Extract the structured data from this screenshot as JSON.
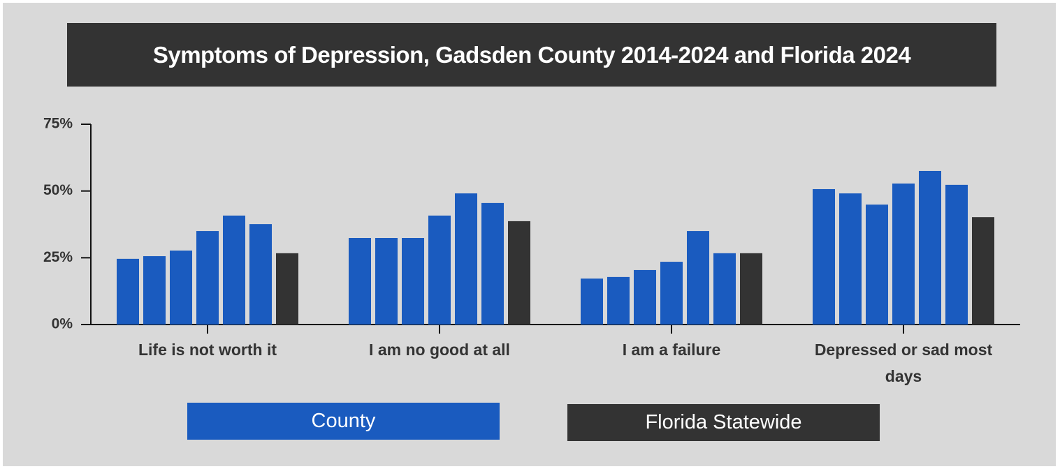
{
  "chart_data": {
    "type": "bar",
    "title": "Symptoms of Depression, Gadsden County 2014-2024 and Florida 2024",
    "categories": [
      "Life is not worth it",
      "I am no good at all",
      "I am a failure",
      "Depressed or sad most days"
    ],
    "series": [
      {
        "name": "County",
        "color": "#1a5bbf",
        "values": [
          [
            24.6,
            25.6,
            27.7,
            35,
            40.8,
            37.6
          ],
          [
            32.4,
            32.4,
            32.4,
            40.8,
            49.1,
            45.5
          ],
          [
            17.2,
            17.8,
            20.4,
            23.5,
            35,
            26.7
          ],
          [
            50.7,
            49.1,
            44.9,
            52.8,
            57.5,
            52.3
          ]
        ]
      },
      {
        "name": "Florida Statewide",
        "color": "#333333",
        "values": [
          26.7,
          38.7,
          26.7,
          40.2
        ]
      }
    ],
    "ylim": [
      0,
      75
    ],
    "yticks": [
      {
        "value": 0,
        "label": "0%"
      },
      {
        "value": 25,
        "label": "25%"
      },
      {
        "value": 50,
        "label": "50%"
      },
      {
        "value": 75,
        "label": "75%"
      }
    ]
  }
}
